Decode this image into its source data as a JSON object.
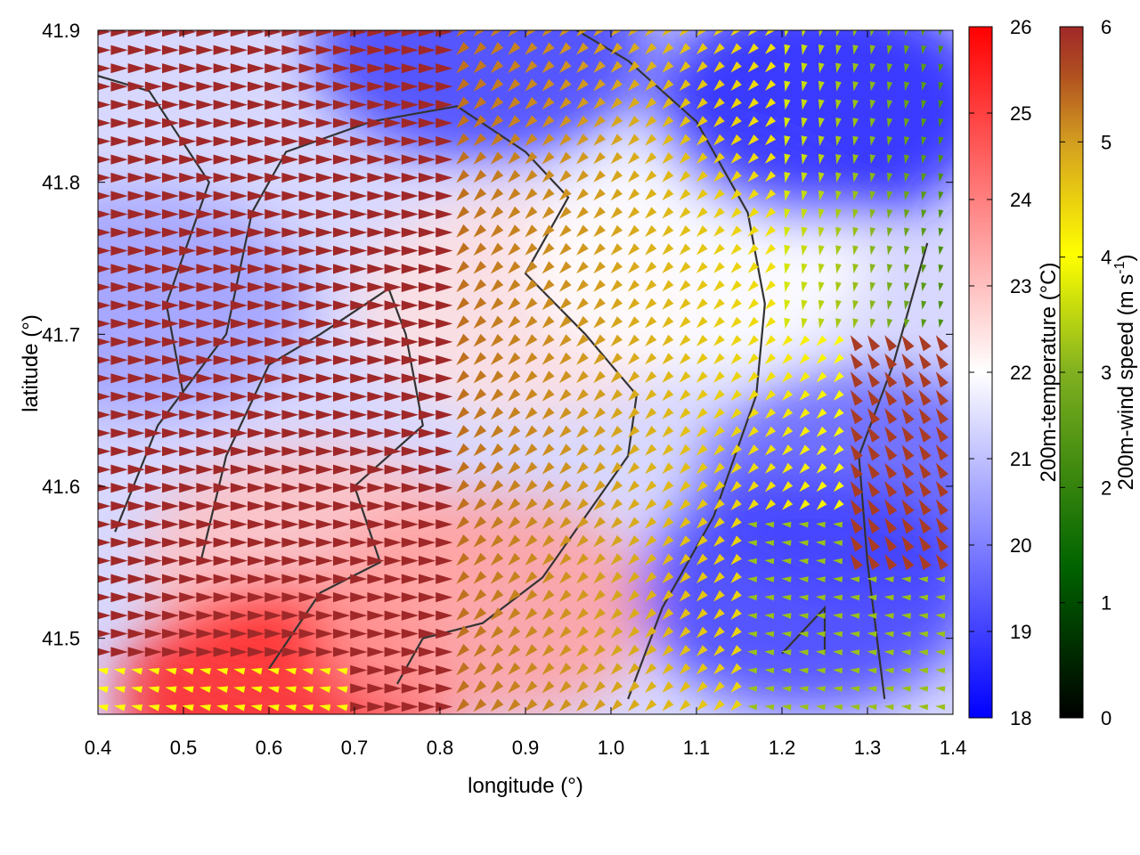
{
  "chart_data": {
    "type": "heatmap",
    "title": "",
    "xlabel": "longitude (°)",
    "ylabel": "latitude (°)",
    "xlim": [
      0.4,
      1.4
    ],
    "ylim": [
      41.45,
      41.9
    ],
    "x_ticks": [
      0.4,
      0.5,
      0.6,
      0.7,
      0.8,
      0.9,
      1.0,
      1.1,
      1.2,
      1.3,
      1.4
    ],
    "x_tick_labels": [
      "0.4",
      "0.5",
      "0.6",
      "0.7",
      "0.8",
      "0.9",
      "1.0",
      "1.1",
      "1.2",
      "1.3",
      "1.4"
    ],
    "y_ticks": [
      41.5,
      41.6,
      41.7,
      41.8,
      41.9
    ],
    "y_tick_labels": [
      "41.5",
      "41.6",
      "41.7",
      "41.8",
      "41.9"
    ],
    "grid": false,
    "background_field": {
      "name": "200m-temperature",
      "units": "°C",
      "colorbar_label": "200m-temperature (°C)",
      "range": [
        18,
        26
      ],
      "ticks": [
        "18",
        "19",
        "20",
        "21",
        "22",
        "23",
        "24",
        "25",
        "26"
      ],
      "colormap": [
        "#0000ff",
        "#ffffff",
        "#ff0000"
      ],
      "estimated_regions": [
        {
          "lon": 0.45,
          "lat": 41.72,
          "temp": 20.5
        },
        {
          "lon": 0.65,
          "lat": 41.55,
          "temp": 23.0
        },
        {
          "lon": 0.62,
          "lat": 41.46,
          "temp": 25.5
        },
        {
          "lon": 0.85,
          "lat": 41.52,
          "temp": 23.5
        },
        {
          "lon": 0.9,
          "lat": 41.72,
          "temp": 22.5
        },
        {
          "lon": 1.1,
          "lat": 41.75,
          "temp": 22.0
        },
        {
          "lon": 1.25,
          "lat": 41.85,
          "temp": 18.5
        },
        {
          "lon": 1.3,
          "lat": 41.6,
          "temp": 19.5
        },
        {
          "lon": 1.23,
          "lat": 41.53,
          "temp": 19.0
        },
        {
          "lon": 0.85,
          "lat": 41.89,
          "temp": 19.0
        }
      ]
    },
    "vector_field": {
      "name": "200m-wind speed",
      "units": "m s-1",
      "colorbar_label": "200m-wind speed (m s",
      "colorbar_label_sup": "-1",
      "colorbar_label_end": ")",
      "range": [
        0,
        6
      ],
      "ticks": [
        "0",
        "1",
        "2",
        "3",
        "4",
        "5",
        "6"
      ],
      "colormap": [
        "#000000",
        "#006400",
        "#80b020",
        "#ffff00",
        "#d4a020",
        "#b05020",
        "#a02828"
      ],
      "prevailing": [
        {
          "region": "west",
          "direction": "east",
          "speed": 6.0
        },
        {
          "region": "center",
          "direction": "southwest",
          "speed": 4.8
        },
        {
          "region": "northeast",
          "direction": "south",
          "speed": 2.0
        },
        {
          "region": "southeast",
          "direction": "west",
          "speed": 2.5
        }
      ]
    },
    "contour_color": "#333333"
  }
}
